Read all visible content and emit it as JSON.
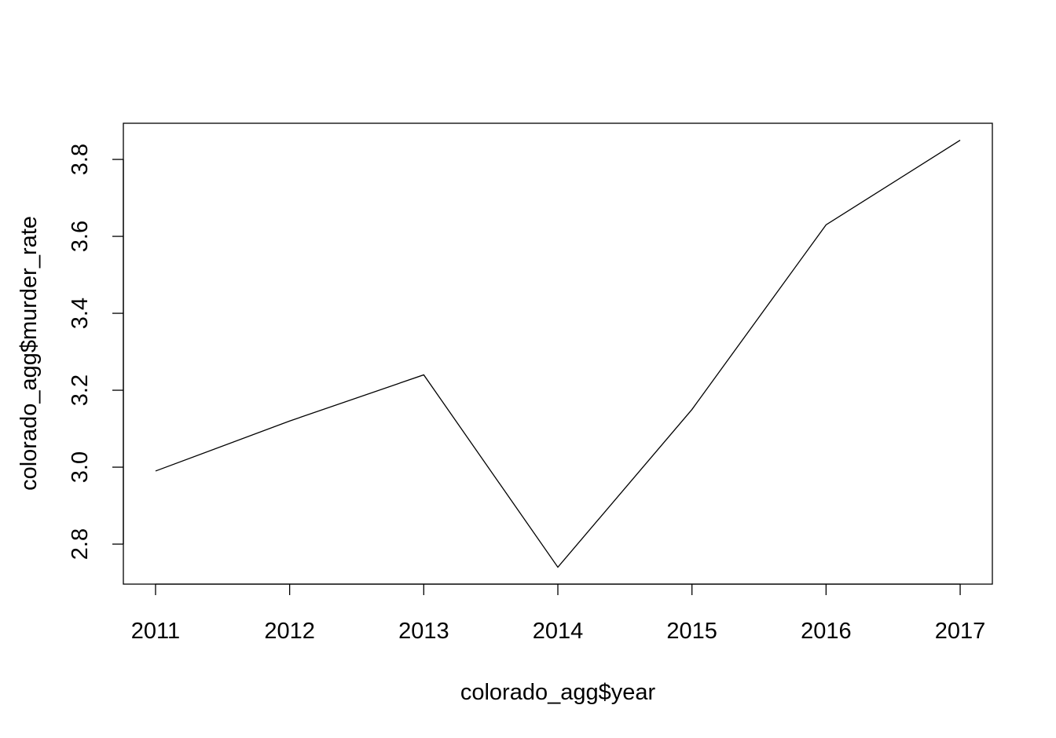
{
  "chart_data": {
    "type": "line",
    "title": "",
    "xlabel": "colorado_agg$year",
    "ylabel": "colorado_agg$murder_rate",
    "x": [
      2011,
      2012,
      2013,
      2014,
      2015,
      2016,
      2017
    ],
    "series": [
      {
        "values": [
          2.99,
          3.12,
          3.24,
          2.74,
          3.15,
          3.63,
          3.85
        ]
      }
    ],
    "x_ticks": [
      "2011",
      "2012",
      "2013",
      "2014",
      "2015",
      "2016",
      "2017"
    ],
    "y_ticks": [
      "2.8",
      "3.0",
      "3.2",
      "3.4",
      "3.6",
      "3.8"
    ],
    "xlim": [
      2010.76,
      2017.24
    ],
    "ylim": [
      2.696,
      3.894
    ],
    "grid": false,
    "line_color": "#000000"
  }
}
